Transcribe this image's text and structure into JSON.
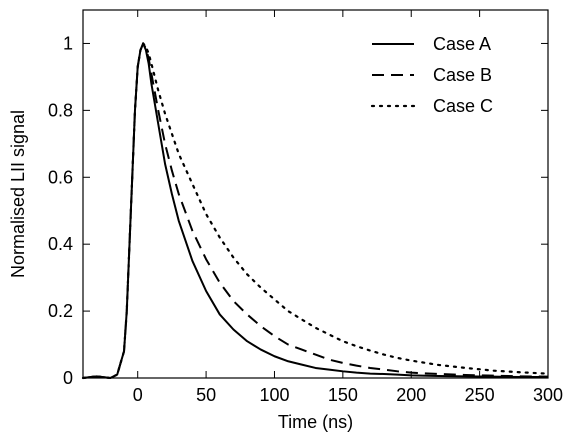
{
  "chart_data": {
    "type": "line",
    "xlabel": "Time (ns)",
    "ylabel": "Normalised LII signal",
    "xlim": [
      -40,
      300
    ],
    "ylim": [
      0,
      1.1
    ],
    "xticks": [
      0,
      50,
      100,
      150,
      200,
      250,
      300
    ],
    "yticks": [
      0,
      0.2,
      0.4,
      0.6,
      0.8,
      1
    ],
    "xtick_labels": [
      "0",
      "50",
      "100",
      "150",
      "200",
      "250",
      "300"
    ],
    "ytick_labels": [
      "0",
      "0.2",
      "0.4",
      "0.6",
      "0.8",
      "1"
    ],
    "legend_position": "top-right",
    "grid": false,
    "series": [
      {
        "name": "Case A",
        "style": "solid",
        "color": "#000000",
        "x": [
          -40,
          -30,
          -20,
          -15,
          -10,
          -8,
          -6,
          -4,
          -2,
          0,
          2,
          4,
          6,
          8,
          10,
          15,
          20,
          25,
          30,
          40,
          50,
          60,
          70,
          80,
          90,
          100,
          110,
          120,
          130,
          140,
          150,
          160,
          170,
          180,
          190,
          200,
          220,
          240,
          260,
          280,
          300
        ],
        "y": [
          0.0,
          0.005,
          0.0,
          0.01,
          0.08,
          0.2,
          0.4,
          0.6,
          0.8,
          0.93,
          0.98,
          1.0,
          0.98,
          0.94,
          0.88,
          0.76,
          0.64,
          0.55,
          0.47,
          0.35,
          0.26,
          0.19,
          0.145,
          0.11,
          0.085,
          0.065,
          0.05,
          0.04,
          0.03,
          0.025,
          0.02,
          0.016,
          0.013,
          0.012,
          0.01,
          0.008,
          0.006,
          0.005,
          0.004,
          0.003,
          0.003
        ]
      },
      {
        "name": "Case B",
        "style": "dashed",
        "color": "#000000",
        "x": [
          -40,
          -30,
          -20,
          -15,
          -10,
          -8,
          -6,
          -4,
          -2,
          0,
          2,
          4,
          6,
          8,
          10,
          15,
          20,
          25,
          30,
          40,
          50,
          60,
          70,
          80,
          90,
          100,
          110,
          120,
          130,
          140,
          150,
          160,
          170,
          180,
          190,
          200,
          220,
          240,
          260,
          280,
          300
        ],
        "y": [
          0.0,
          0.005,
          0.0,
          0.01,
          0.08,
          0.2,
          0.4,
          0.6,
          0.8,
          0.93,
          0.98,
          1.0,
          0.985,
          0.955,
          0.91,
          0.8,
          0.7,
          0.62,
          0.55,
          0.44,
          0.355,
          0.285,
          0.23,
          0.19,
          0.155,
          0.125,
          0.1,
          0.085,
          0.07,
          0.055,
          0.045,
          0.037,
          0.03,
          0.025,
          0.02,
          0.016,
          0.012,
          0.009,
          0.007,
          0.005,
          0.004
        ]
      },
      {
        "name": "Case C",
        "style": "dotted",
        "color": "#000000",
        "x": [
          -40,
          -30,
          -20,
          -15,
          -10,
          -8,
          -6,
          -4,
          -2,
          0,
          2,
          4,
          6,
          8,
          10,
          15,
          20,
          25,
          30,
          40,
          50,
          60,
          70,
          80,
          90,
          100,
          110,
          120,
          130,
          140,
          150,
          160,
          170,
          180,
          190,
          200,
          220,
          240,
          260,
          280,
          300
        ],
        "y": [
          0.0,
          0.005,
          0.0,
          0.01,
          0.08,
          0.2,
          0.4,
          0.6,
          0.8,
          0.93,
          0.98,
          1.0,
          0.99,
          0.97,
          0.94,
          0.86,
          0.79,
          0.73,
          0.67,
          0.58,
          0.49,
          0.42,
          0.36,
          0.31,
          0.27,
          0.235,
          0.2,
          0.175,
          0.15,
          0.13,
          0.11,
          0.095,
          0.082,
          0.07,
          0.06,
          0.052,
          0.039,
          0.03,
          0.022,
          0.017,
          0.013
        ]
      }
    ]
  }
}
